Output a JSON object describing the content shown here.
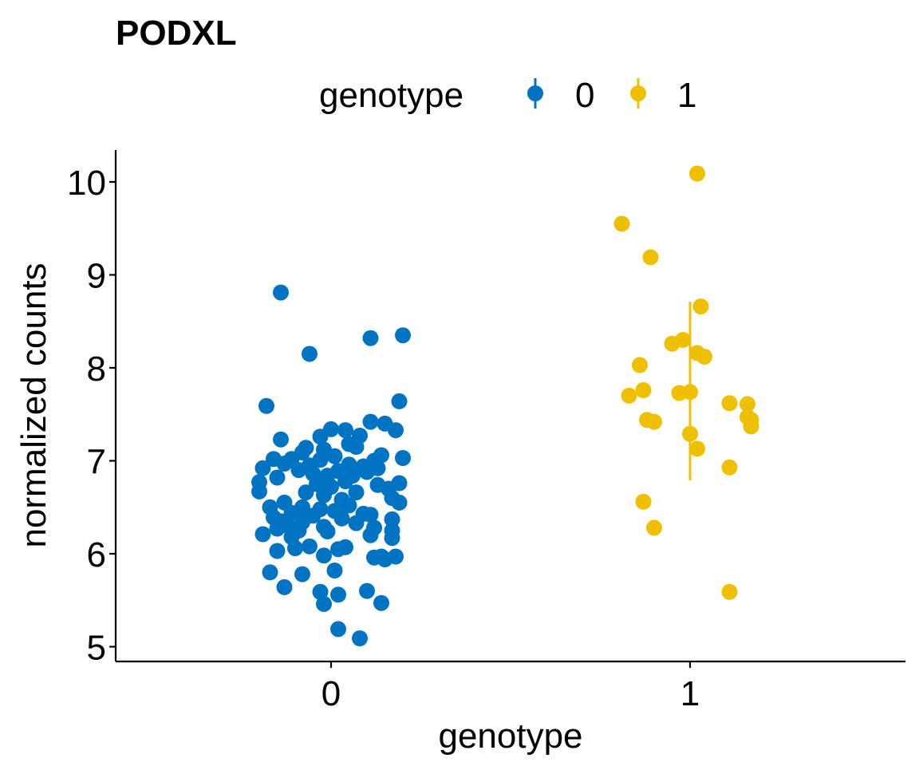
{
  "chart_data": {
    "type": "scatter",
    "title": "PODXL",
    "xlabel": "genotype",
    "ylabel": "normalized counts",
    "categories": [
      "0",
      "1"
    ],
    "ylim": [
      4.85,
      10.35
    ],
    "y_ticks": [
      5,
      6,
      7,
      8,
      9,
      10
    ],
    "grid": false,
    "legend": {
      "title": "genotype",
      "position": "top",
      "entries": [
        {
          "label": "0",
          "color": "#0073C2"
        },
        {
          "label": "1",
          "color": "#EFC000"
        }
      ]
    },
    "series": [
      {
        "name": "0",
        "category": "0",
        "color": "#0073C2",
        "points": [
          {
            "x": -0.14,
            "y": 8.81
          },
          {
            "x": -0.06,
            "y": 8.15
          },
          {
            "x": 0.11,
            "y": 8.32
          },
          {
            "x": 0.2,
            "y": 8.35
          },
          {
            "x": 0.19,
            "y": 7.64
          },
          {
            "x": -0.18,
            "y": 7.59
          },
          {
            "x": 0.11,
            "y": 7.42
          },
          {
            "x": 0.15,
            "y": 7.4
          },
          {
            "x": 0.18,
            "y": 7.33
          },
          {
            "x": 0.0,
            "y": 7.34
          },
          {
            "x": 0.04,
            "y": 7.33
          },
          {
            "x": -0.03,
            "y": 7.26
          },
          {
            "x": 0.08,
            "y": 7.27
          },
          {
            "x": -0.14,
            "y": 7.23
          },
          {
            "x": 0.05,
            "y": 7.18
          },
          {
            "x": 0.07,
            "y": 7.15
          },
          {
            "x": -0.07,
            "y": 7.14
          },
          {
            "x": -0.02,
            "y": 7.12
          },
          {
            "x": -0.08,
            "y": 7.09
          },
          {
            "x": 0.01,
            "y": 7.05
          },
          {
            "x": 0.14,
            "y": 7.06
          },
          {
            "x": 0.2,
            "y": 7.03
          },
          {
            "x": -0.16,
            "y": 7.02
          },
          {
            "x": -0.11,
            "y": 7.02
          },
          {
            "x": -0.03,
            "y": 7.01
          },
          {
            "x": 0.12,
            "y": 7.0
          },
          {
            "x": -0.13,
            "y": 6.97
          },
          {
            "x": 0.05,
            "y": 6.96
          },
          {
            "x": -0.06,
            "y": 6.95
          },
          {
            "x": 0.09,
            "y": 6.94
          },
          {
            "x": -0.19,
            "y": 6.92
          },
          {
            "x": 0.13,
            "y": 6.92
          },
          {
            "x": -0.09,
            "y": 6.9
          },
          {
            "x": 0.02,
            "y": 6.89
          },
          {
            "x": 0.1,
            "y": 6.88
          },
          {
            "x": -0.05,
            "y": 6.86
          },
          {
            "x": -0.15,
            "y": 6.82
          },
          {
            "x": -0.01,
            "y": 6.84
          },
          {
            "x": 0.06,
            "y": 6.84
          },
          {
            "x": -0.2,
            "y": 6.77
          },
          {
            "x": 0.04,
            "y": 6.78
          },
          {
            "x": 0.19,
            "y": 6.76
          },
          {
            "x": -0.04,
            "y": 6.75
          },
          {
            "x": 0.13,
            "y": 6.74
          },
          {
            "x": 0.0,
            "y": 6.72
          },
          {
            "x": 0.16,
            "y": 6.7
          },
          {
            "x": -0.2,
            "y": 6.67
          },
          {
            "x": -0.07,
            "y": 6.66
          },
          {
            "x": 0.07,
            "y": 6.66
          },
          {
            "x": -0.02,
            "y": 6.63
          },
          {
            "x": 0.17,
            "y": 6.6
          },
          {
            "x": 0.03,
            "y": 6.58
          },
          {
            "x": -0.13,
            "y": 6.55
          },
          {
            "x": 0.19,
            "y": 6.55
          },
          {
            "x": 0.05,
            "y": 6.52
          },
          {
            "x": -0.08,
            "y": 6.5
          },
          {
            "x": -0.17,
            "y": 6.5
          },
          {
            "x": -0.03,
            "y": 6.48
          },
          {
            "x": 0.01,
            "y": 6.46
          },
          {
            "x": -0.11,
            "y": 6.44
          },
          {
            "x": 0.09,
            "y": 6.43
          },
          {
            "x": 0.11,
            "y": 6.42
          },
          {
            "x": -0.05,
            "y": 6.41
          },
          {
            "x": -0.16,
            "y": 6.39
          },
          {
            "x": 0.03,
            "y": 6.38
          },
          {
            "x": 0.17,
            "y": 6.37
          },
          {
            "x": -0.14,
            "y": 6.35
          },
          {
            "x": -0.08,
            "y": 6.34
          },
          {
            "x": 0.07,
            "y": 6.33
          },
          {
            "x": -0.12,
            "y": 6.3
          },
          {
            "x": -0.02,
            "y": 6.29
          },
          {
            "x": 0.12,
            "y": 6.28
          },
          {
            "x": -0.15,
            "y": 6.27
          },
          {
            "x": 0.17,
            "y": 6.25
          },
          {
            "x": -0.09,
            "y": 6.25
          },
          {
            "x": -0.01,
            "y": 6.24
          },
          {
            "x": -0.19,
            "y": 6.21
          },
          {
            "x": 0.11,
            "y": 6.2
          },
          {
            "x": -0.11,
            "y": 6.18
          },
          {
            "x": 0.17,
            "y": 6.17
          },
          {
            "x": -0.06,
            "y": 6.08
          },
          {
            "x": 0.04,
            "y": 6.07
          },
          {
            "x": -0.1,
            "y": 6.06
          },
          {
            "x": 0.02,
            "y": 6.05
          },
          {
            "x": -0.15,
            "y": 6.03
          },
          {
            "x": -0.02,
            "y": 5.98
          },
          {
            "x": 0.14,
            "y": 5.97
          },
          {
            "x": 0.12,
            "y": 5.96
          },
          {
            "x": 0.18,
            "y": 5.97
          },
          {
            "x": 0.15,
            "y": 5.94
          },
          {
            "x": 0.01,
            "y": 5.82
          },
          {
            "x": -0.17,
            "y": 5.8
          },
          {
            "x": -0.08,
            "y": 5.78
          },
          {
            "x": -0.13,
            "y": 5.64
          },
          {
            "x": 0.1,
            "y": 5.6
          },
          {
            "x": -0.03,
            "y": 5.59
          },
          {
            "x": 0.02,
            "y": 5.56
          },
          {
            "x": -0.02,
            "y": 5.46
          },
          {
            "x": 0.14,
            "y": 5.47
          },
          {
            "x": 0.02,
            "y": 5.19
          },
          {
            "x": 0.08,
            "y": 5.09
          }
        ]
      },
      {
        "name": "1",
        "category": "1",
        "color": "#EFC000",
        "error_bar": {
          "low": 6.79,
          "high": 8.71
        },
        "points": [
          {
            "x": 1.02,
            "y": 10.09
          },
          {
            "x": 0.81,
            "y": 9.55
          },
          {
            "x": 0.89,
            "y": 9.19
          },
          {
            "x": 1.03,
            "y": 8.66
          },
          {
            "x": 0.98,
            "y": 8.3
          },
          {
            "x": 0.95,
            "y": 8.26
          },
          {
            "x": 1.02,
            "y": 8.16
          },
          {
            "x": 1.04,
            "y": 8.12
          },
          {
            "x": 0.86,
            "y": 8.03
          },
          {
            "x": 0.87,
            "y": 7.76
          },
          {
            "x": 1.0,
            "y": 7.74
          },
          {
            "x": 0.97,
            "y": 7.73
          },
          {
            "x": 0.83,
            "y": 7.7
          },
          {
            "x": 1.11,
            "y": 7.62
          },
          {
            "x": 1.16,
            "y": 7.61
          },
          {
            "x": 1.16,
            "y": 7.47
          },
          {
            "x": 1.17,
            "y": 7.44
          },
          {
            "x": 0.88,
            "y": 7.44
          },
          {
            "x": 0.9,
            "y": 7.42
          },
          {
            "x": 1.17,
            "y": 7.37
          },
          {
            "x": 1.0,
            "y": 7.29
          },
          {
            "x": 1.02,
            "y": 7.13
          },
          {
            "x": 1.11,
            "y": 6.93
          },
          {
            "x": 0.87,
            "y": 6.56
          },
          {
            "x": 0.9,
            "y": 6.28
          },
          {
            "x": 1.11,
            "y": 5.59
          }
        ]
      }
    ]
  }
}
